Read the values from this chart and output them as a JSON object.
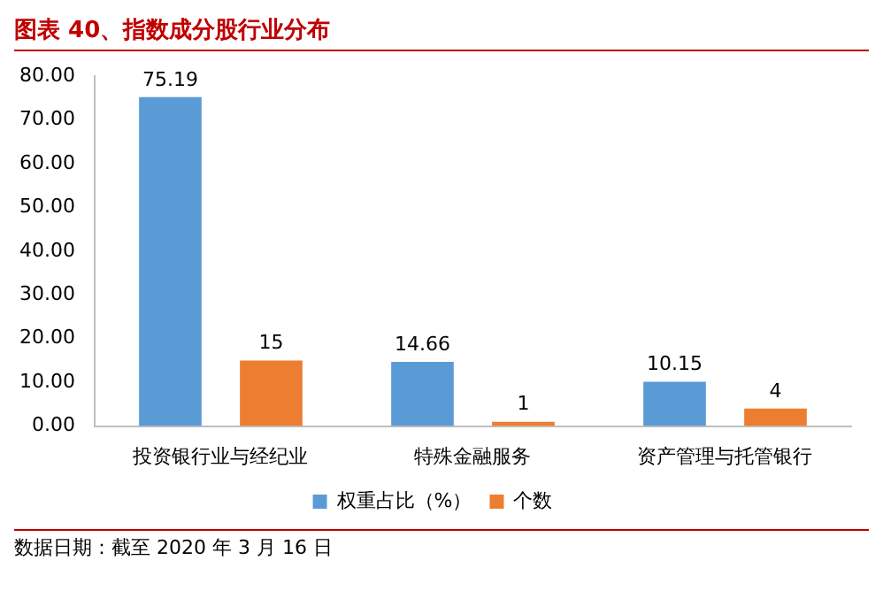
{
  "chart_data": {
    "type": "bar",
    "title": "图表 40、指数成分股行业分布",
    "categories": [
      "投资银行业与经纪业",
      "特殊金融服务",
      "资产管理与托管银行"
    ],
    "series": [
      {
        "name": "权重占比（%）",
        "color": "#5b9bd5",
        "values": [
          75.19,
          14.66,
          10.15
        ]
      },
      {
        "name": "个数",
        "color": "#ed7d31",
        "values": [
          15,
          1,
          4
        ]
      }
    ],
    "ylim": [
      0,
      80
    ],
    "yticks": [
      {
        "value": 0,
        "label": "0.00"
      },
      {
        "value": 10,
        "label": "10.00"
      },
      {
        "value": 20,
        "label": "20.00"
      },
      {
        "value": 30,
        "label": "30.00"
      },
      {
        "value": 40,
        "label": "40.00"
      },
      {
        "value": 50,
        "label": "50.00"
      },
      {
        "value": 60,
        "label": "60.00"
      },
      {
        "value": 70,
        "label": "70.00"
      },
      {
        "value": 80,
        "label": "80.00"
      }
    ],
    "grid": false,
    "legend": "bottom",
    "data_labels": true,
    "annotations": [
      "数据日期：截至 2020 年 3 月 16 日"
    ]
  }
}
